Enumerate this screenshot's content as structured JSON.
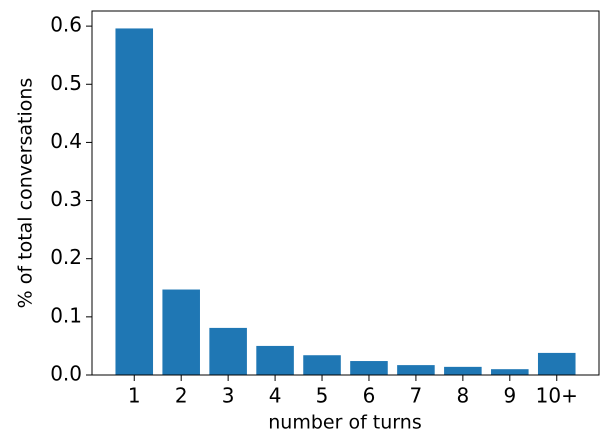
{
  "chart_data": {
    "type": "bar",
    "xlabel": "number of turns",
    "ylabel": "% of total conversations",
    "categories": [
      "1",
      "2",
      "3",
      "4",
      "5",
      "6",
      "7",
      "8",
      "9",
      "10+"
    ],
    "values": [
      0.596,
      0.147,
      0.081,
      0.05,
      0.034,
      0.024,
      0.017,
      0.014,
      0.01,
      0.038
    ],
    "color": "#1f77b4",
    "ylim": [
      0,
      0.626
    ],
    "yticks": [
      {
        "value": 0,
        "label": "0.0"
      },
      0.1,
      0.2,
      0.3,
      0.4,
      0.5,
      0.6
    ],
    "grid": false
  }
}
